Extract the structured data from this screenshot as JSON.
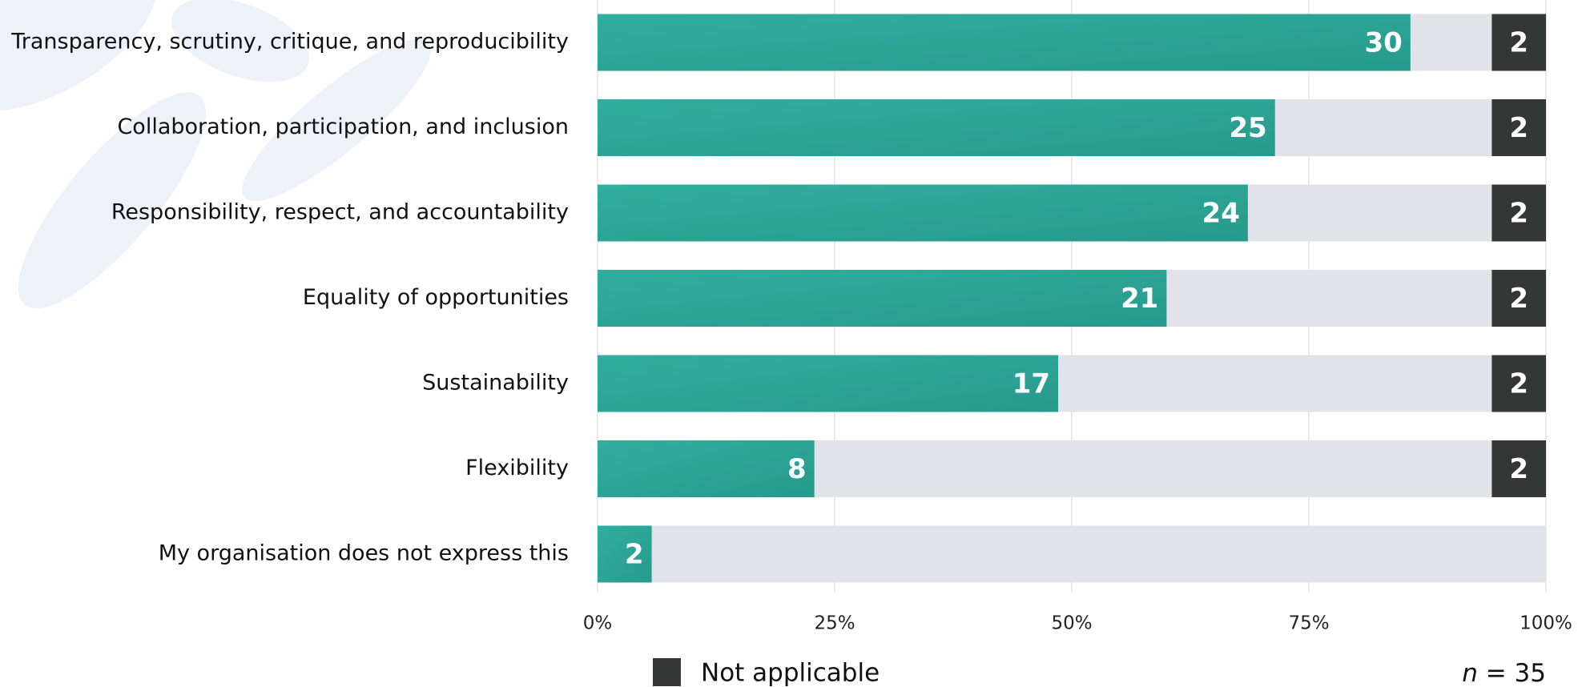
{
  "chart_data": {
    "type": "stacked-barh",
    "categories": [
      "Transparency, scrutiny, critique, and reproducibility",
      "Collaboration, participation, and inclusion",
      "Responsibility, respect, and accountability",
      "Equality of opportunities",
      "Sustainability",
      "Flexibility",
      "My organisation does not express this"
    ],
    "series": [
      {
        "color": "#2ca597",
        "values": [
          85.71,
          71.43,
          68.57,
          60,
          48.57,
          22.86,
          5.71
        ],
        "value_labels": [
          "30",
          "25",
          "24",
          "21",
          "17",
          "8",
          "2"
        ]
      },
      {
        "name": "Not applicable",
        "color": "#333836",
        "values": [
          5.71,
          5.71,
          5.71,
          5.71,
          5.71,
          5.71,
          null
        ],
        "value_labels": [
          "2",
          "2",
          "2",
          "2",
          "2",
          "2",
          null
        ]
      }
    ],
    "xlim": [
      0,
      100
    ],
    "xticks": [
      {
        "value": 0,
        "label": "0%"
      },
      {
        "value": 25,
        "label": "25%"
      },
      {
        "value": 50,
        "label": "50%"
      },
      {
        "value": 75,
        "label": "75%"
      },
      {
        "value": 100,
        "label": "100%"
      }
    ],
    "grid": true,
    "track_color": "#e2e3e8",
    "annotation_symbol": "n",
    "annotation_text": "= 35"
  }
}
